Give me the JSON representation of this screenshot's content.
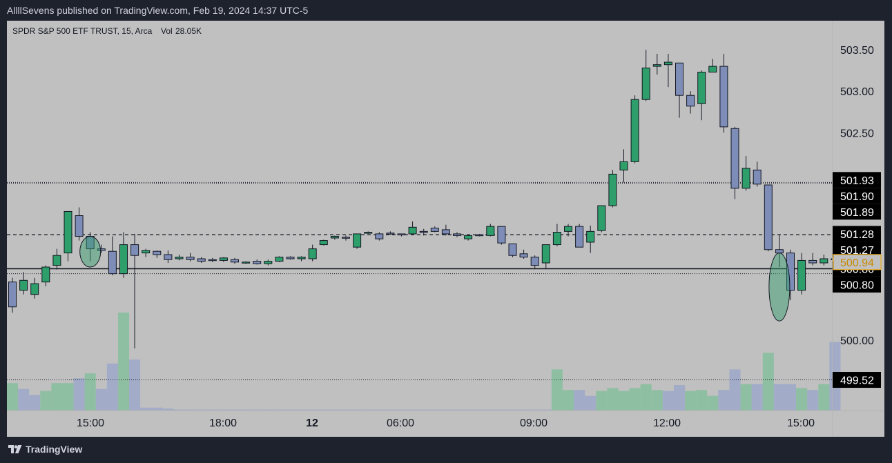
{
  "header": {
    "publish_text": "AllllSevens published on TradingView.com, Feb 19, 2024 14:37 UTC-5"
  },
  "footer": {
    "brand": "TradingView",
    "logo_icon": "tradingview-logo-icon"
  },
  "colors": {
    "frame_bg": "#1e222d",
    "chart_bg": "#c0c0c0",
    "up_candle": "#2e9e6b",
    "down_candle": "#7e8cb8",
    "up_volume": "#8fbfa3",
    "down_volume": "#a2abc7",
    "last_price": "#f2a900"
  },
  "chart_data": {
    "type": "candlestick",
    "title": "SPDR S&P 500 ETF TRUST, 15, Arca",
    "volume_label": "Vol",
    "volume_value": "28.05K",
    "x_ticks": [
      "15:00",
      "18:00",
      "12",
      "06:00",
      "09:00",
      "12:00",
      "15:00"
    ],
    "y_ticks": [
      "503.50",
      "503.00",
      "502.50",
      "500.00"
    ],
    "ylim": [
      499.15,
      503.85
    ],
    "levels": [
      {
        "value": 501.93,
        "label": "501.93",
        "style": "badge"
      },
      {
        "value": 501.9,
        "label": "501.90",
        "style": "dotted"
      },
      {
        "value": 501.89,
        "label": "501.89",
        "style": "dotted"
      },
      {
        "value": 501.28,
        "label": "501.28",
        "style": "badge"
      },
      {
        "value": 501.27,
        "label": "501.27",
        "style": "dashed"
      },
      {
        "value": 500.86,
        "label": "500.86",
        "style": "solid"
      },
      {
        "value": 500.8,
        "label": "500.80",
        "style": "dotted"
      },
      {
        "value": 499.52,
        "label": "499.52",
        "style": "dotted"
      }
    ],
    "last_price": {
      "value": 500.94,
      "label": "500.94"
    },
    "candles": [
      [
        500.7,
        500.4,
        500.75,
        500.33
      ],
      [
        500.6,
        500.72,
        500.82,
        500.55
      ],
      [
        500.55,
        500.68,
        500.75,
        500.5
      ],
      [
        500.7,
        500.88,
        500.9,
        500.65
      ],
      [
        500.9,
        501.02,
        501.1,
        500.85
      ],
      [
        501.05,
        501.55,
        501.55,
        500.95
      ],
      [
        501.5,
        501.25,
        501.6,
        501.2
      ],
      [
        501.25,
        501.1,
        501.3,
        500.95
      ],
      [
        501.1,
        501.08,
        501.15,
        501.05
      ],
      [
        501.07,
        500.8,
        501.25,
        500.78
      ],
      [
        500.8,
        501.15,
        501.3,
        500.75
      ],
      [
        501.15,
        501.02,
        501.28,
        499.9
      ],
      [
        501.05,
        501.08,
        501.1,
        501.0
      ],
      [
        501.07,
        501.03,
        501.08,
        500.99
      ],
      [
        501.03,
        500.97,
        501.08,
        500.93
      ],
      [
        500.98,
        501.0,
        501.03,
        500.96
      ],
      [
        501.0,
        500.97,
        501.05,
        500.95
      ],
      [
        500.98,
        500.95,
        501.0,
        500.93
      ],
      [
        500.97,
        500.96,
        500.99,
        500.94
      ],
      [
        500.96,
        500.99,
        501.0,
        500.94
      ],
      [
        500.97,
        500.94,
        500.99,
        500.92
      ],
      [
        500.94,
        500.94,
        500.95,
        500.92
      ],
      [
        500.95,
        500.92,
        500.97,
        500.91
      ],
      [
        500.92,
        500.95,
        500.97,
        500.9
      ],
      [
        500.95,
        501.0,
        501.01,
        500.94
      ],
      [
        501.0,
        500.98,
        501.01,
        500.97
      ],
      [
        500.98,
        501.0,
        501.01,
        500.95
      ],
      [
        500.98,
        501.1,
        501.15,
        500.95
      ],
      [
        501.15,
        501.2,
        501.21,
        501.14
      ],
      [
        501.23,
        501.25,
        501.26,
        501.21
      ],
      [
        501.24,
        501.23,
        501.26,
        501.2
      ],
      [
        501.12,
        501.28,
        501.28,
        501.1
      ],
      [
        501.29,
        501.3,
        501.31,
        501.28
      ],
      [
        501.28,
        501.22,
        501.3,
        501.2
      ],
      [
        501.29,
        501.28,
        501.31,
        501.27
      ],
      [
        501.28,
        501.27,
        501.28,
        501.25
      ],
      [
        501.28,
        501.36,
        501.43,
        501.3
      ],
      [
        501.31,
        501.3,
        501.34,
        501.26
      ],
      [
        501.35,
        501.31,
        501.37,
        501.3
      ],
      [
        501.33,
        501.28,
        501.39,
        501.26
      ],
      [
        501.28,
        501.26,
        501.3,
        501.24
      ],
      [
        501.22,
        501.26,
        501.27,
        501.2
      ],
      [
        501.27,
        501.26,
        501.28,
        501.25
      ],
      [
        501.26,
        501.37,
        501.4,
        501.25
      ],
      [
        501.37,
        501.17,
        501.37,
        501.15
      ],
      [
        501.16,
        501.02,
        501.16,
        501.0
      ],
      [
        501.04,
        501.0,
        501.09,
        500.98
      ],
      [
        501.0,
        500.9,
        501.02,
        500.86
      ],
      [
        500.93,
        501.15,
        501.15,
        500.86
      ],
      [
        501.15,
        501.3,
        501.4,
        501.13
      ],
      [
        501.31,
        501.37,
        501.4,
        501.25
      ],
      [
        501.37,
        501.12,
        501.4,
        501.12
      ],
      [
        501.18,
        501.31,
        501.38,
        501.05
      ],
      [
        501.32,
        501.62,
        501.62,
        501.3
      ],
      [
        501.62,
        502.0,
        502.05,
        501.6
      ],
      [
        502.05,
        502.15,
        502.3,
        501.9
      ],
      [
        502.15,
        502.9,
        502.95,
        502.13
      ],
      [
        502.9,
        503.28,
        503.5,
        502.88
      ],
      [
        503.3,
        503.32,
        503.45,
        503.2
      ],
      [
        503.32,
        503.35,
        503.45,
        503.05
      ],
      [
        503.34,
        502.95,
        503.34,
        502.68
      ],
      [
        502.95,
        502.82,
        503.0,
        502.73
      ],
      [
        502.85,
        503.23,
        503.25,
        502.65
      ],
      [
        503.23,
        503.3,
        503.39,
        503.24
      ],
      [
        503.3,
        502.57,
        503.45,
        502.5
      ],
      [
        502.55,
        501.83,
        502.57,
        501.7
      ],
      [
        501.83,
        502.07,
        502.22,
        501.8
      ],
      [
        502.05,
        501.88,
        502.15,
        501.85
      ],
      [
        501.87,
        501.09,
        501.87,
        501.07
      ],
      [
        501.09,
        501.05,
        501.27,
        500.88
      ],
      [
        501.05,
        500.6,
        501.09,
        500.48
      ],
      [
        500.6,
        500.96,
        501.05,
        500.55
      ],
      [
        500.96,
        500.93,
        501.05,
        500.9
      ],
      [
        500.93,
        500.98,
        501.03,
        500.9
      ],
      [
        500.98,
        500.97,
        501.07,
        500.85
      ]
    ],
    "volumes": [
      [
        0.28,
        1
      ],
      [
        0.22,
        0
      ],
      [
        0.16,
        0
      ],
      [
        0.2,
        1
      ],
      [
        0.28,
        1
      ],
      [
        0.28,
        1
      ],
      [
        0.33,
        0
      ],
      [
        0.38,
        1
      ],
      [
        0.22,
        0
      ],
      [
        0.48,
        0
      ],
      [
        1.0,
        1
      ],
      [
        0.52,
        0
      ],
      [
        0.03,
        0
      ],
      [
        0.03,
        0
      ],
      [
        0.02,
        0
      ],
      [
        0.01,
        0
      ],
      [
        0.01,
        0
      ],
      [
        0.01,
        0
      ],
      [
        0.01,
        0
      ],
      [
        0.01,
        0
      ],
      [
        0.01,
        0
      ],
      [
        0.01,
        0
      ],
      [
        0.01,
        0
      ],
      [
        0.01,
        0
      ],
      [
        0.01,
        0
      ],
      [
        0.01,
        0
      ],
      [
        0.01,
        0
      ],
      [
        0.01,
        0
      ],
      [
        0.01,
        0
      ],
      [
        0.01,
        0
      ],
      [
        0.01,
        0
      ],
      [
        0.01,
        0
      ],
      [
        0.01,
        0
      ],
      [
        0.01,
        0
      ],
      [
        0.01,
        0
      ],
      [
        0.01,
        0
      ],
      [
        0.01,
        0
      ],
      [
        0.01,
        0
      ],
      [
        0.01,
        0
      ],
      [
        0.01,
        0
      ],
      [
        0.01,
        0
      ],
      [
        0.01,
        0
      ],
      [
        0.01,
        0
      ],
      [
        0.01,
        0
      ],
      [
        0.01,
        0
      ],
      [
        0.01,
        0
      ],
      [
        0.01,
        0
      ],
      [
        0.01,
        0
      ],
      [
        0.01,
        0
      ],
      [
        0.42,
        1
      ],
      [
        0.21,
        1
      ],
      [
        0.21,
        0
      ],
      [
        0.15,
        0
      ],
      [
        0.2,
        1
      ],
      [
        0.23,
        1
      ],
      [
        0.2,
        1
      ],
      [
        0.23,
        1
      ],
      [
        0.27,
        1
      ],
      [
        0.21,
        1
      ],
      [
        0.2,
        0
      ],
      [
        0.26,
        0
      ],
      [
        0.2,
        1
      ],
      [
        0.21,
        1
      ],
      [
        0.15,
        1
      ],
      [
        0.21,
        0
      ],
      [
        0.42,
        0
      ],
      [
        0.27,
        1
      ],
      [
        0.27,
        0
      ],
      [
        0.59,
        1
      ],
      [
        0.27,
        0
      ],
      [
        0.27,
        0
      ],
      [
        0.23,
        1
      ],
      [
        0.21,
        0
      ],
      [
        0.27,
        1
      ],
      [
        0.7,
        0
      ]
    ],
    "annotations": [
      {
        "type": "ellipse",
        "candle": 7,
        "y_top": 501.25,
        "y_bottom": 500.88
      },
      {
        "type": "ellipse",
        "candle": 69,
        "y_top": 501.05,
        "y_bottom": 500.23
      }
    ]
  }
}
